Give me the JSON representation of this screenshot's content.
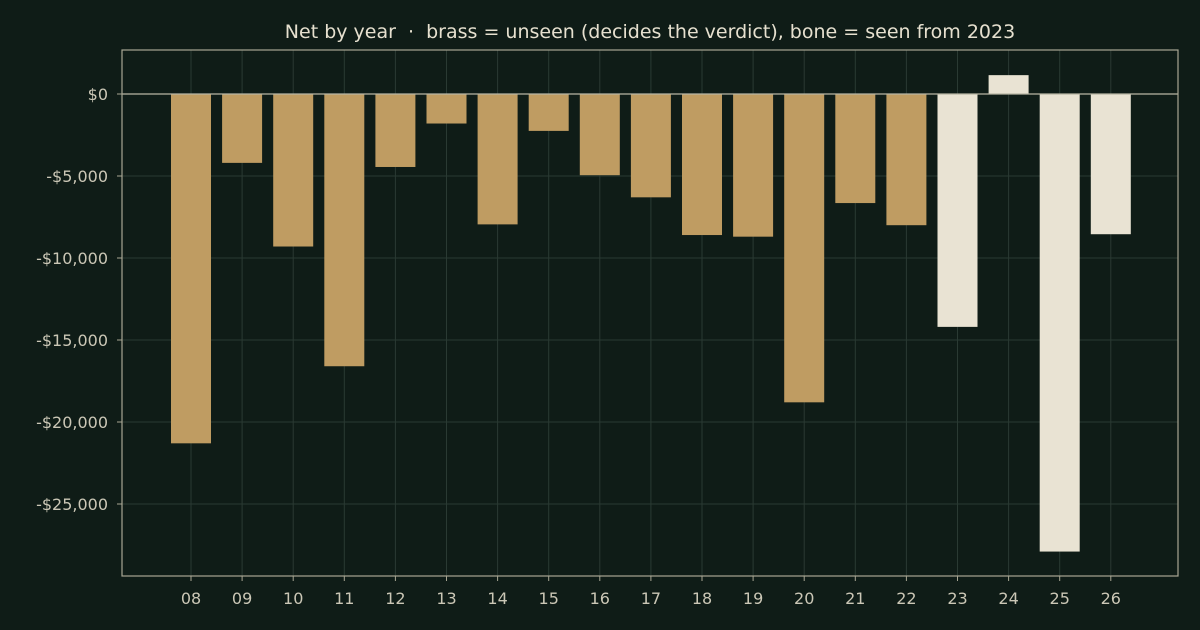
{
  "chart_data": {
    "type": "bar",
    "title": "Net by year  ·  brass = unseen (decides the verdict), bone = seen from 2023",
    "xlabel": "",
    "ylabel": "",
    "categories": [
      "08",
      "09",
      "10",
      "11",
      "12",
      "13",
      "14",
      "15",
      "16",
      "17",
      "18",
      "19",
      "20",
      "21",
      "22",
      "23",
      "24",
      "25",
      "26"
    ],
    "values": [
      -21300,
      -4200,
      -9300,
      -16600,
      -4450,
      -1800,
      -7950,
      -2250,
      -4950,
      -6300,
      -8600,
      -8700,
      -18800,
      -6650,
      -8000,
      -14200,
      1150,
      -27900,
      -8550
    ],
    "groups": [
      "unseen",
      "unseen",
      "unseen",
      "unseen",
      "unseen",
      "unseen",
      "unseen",
      "unseen",
      "unseen",
      "unseen",
      "unseen",
      "unseen",
      "unseen",
      "unseen",
      "unseen",
      "seen",
      "seen",
      "seen",
      "seen"
    ],
    "ylim": [
      -29000,
      2700
    ],
    "yticks": [
      0,
      -5000,
      -10000,
      -15000,
      -20000,
      -25000
    ],
    "ytick_labels": [
      "$0",
      "-$5,000",
      "-$10,000",
      "-$15,000",
      "-$20,000",
      "-$25,000"
    ],
    "grid": true,
    "colors": {
      "background": "#0f1c17",
      "unseen": "#bf9c62",
      "seen": "#e9e3d3",
      "axis": "#a8a693",
      "grid": "#2a3a33",
      "text": "#e6e0cf",
      "tick_text": "#cbc7b6",
      "zero_line": "#b9b6a4"
    }
  }
}
